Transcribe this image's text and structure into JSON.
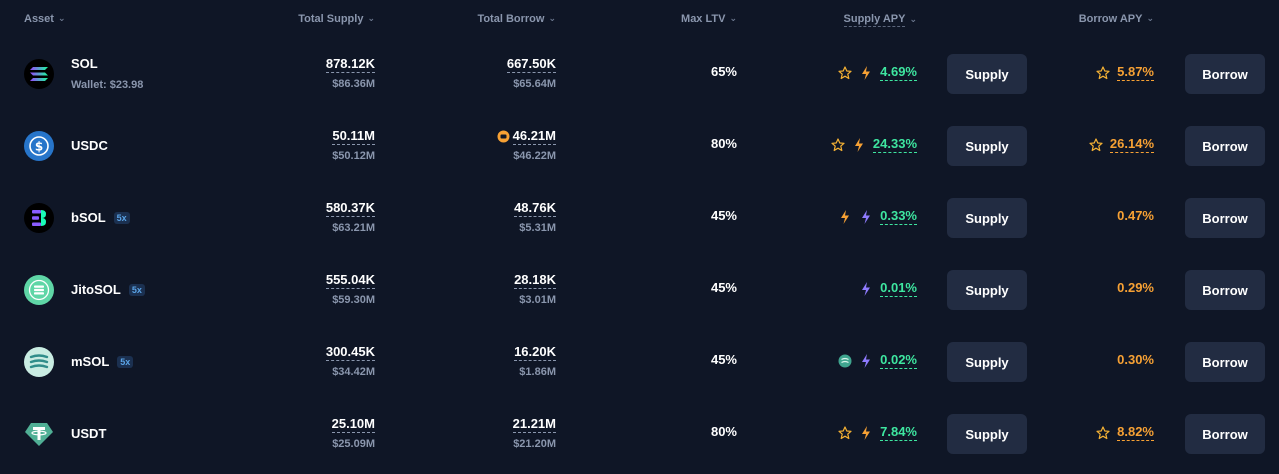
{
  "headers": {
    "asset": "Asset",
    "total_supply": "Total Supply",
    "total_borrow": "Total Borrow",
    "max_ltv": "Max LTV",
    "supply_apy": "Supply APY",
    "borrow_apy": "Borrow APY"
  },
  "rows": [
    {
      "asset": "SOL",
      "wallet": "Wallet: $23.98",
      "leverage": "",
      "supply": "878.12K",
      "supply_usd": "$86.36M",
      "borrow": "667.50K",
      "borrow_usd": "$65.64M",
      "ltv": "65%",
      "supply_apy": "4.69%",
      "borrow_apy": "5.87%",
      "supply_button": "Supply",
      "borrow_button": "Borrow"
    },
    {
      "asset": "USDC",
      "wallet": "",
      "leverage": "",
      "supply": "50.11M",
      "supply_usd": "$50.12M",
      "borrow": "46.21M",
      "borrow_usd": "$46.22M",
      "ltv": "80%",
      "supply_apy": "24.33%",
      "borrow_apy": "26.14%",
      "supply_button": "Supply",
      "borrow_button": "Borrow"
    },
    {
      "asset": "bSOL",
      "wallet": "",
      "leverage": "5x",
      "supply": "580.37K",
      "supply_usd": "$63.21M",
      "borrow": "48.76K",
      "borrow_usd": "$5.31M",
      "ltv": "45%",
      "supply_apy": "0.33%",
      "borrow_apy": "0.47%",
      "supply_button": "Supply",
      "borrow_button": "Borrow"
    },
    {
      "asset": "JitoSOL",
      "wallet": "",
      "leverage": "5x",
      "supply": "555.04K",
      "supply_usd": "$59.30M",
      "borrow": "28.18K",
      "borrow_usd": "$3.01M",
      "ltv": "45%",
      "supply_apy": "0.01%",
      "borrow_apy": "0.29%",
      "supply_button": "Supply",
      "borrow_button": "Borrow"
    },
    {
      "asset": "mSOL",
      "wallet": "",
      "leverage": "5x",
      "supply": "300.45K",
      "supply_usd": "$34.42M",
      "borrow": "16.20K",
      "borrow_usd": "$1.86M",
      "ltv": "45%",
      "supply_apy": "0.02%",
      "borrow_apy": "0.30%",
      "supply_button": "Supply",
      "borrow_button": "Borrow"
    },
    {
      "asset": "USDT",
      "wallet": "",
      "leverage": "",
      "supply": "25.10M",
      "supply_usd": "$25.09M",
      "borrow": "21.21M",
      "borrow_usd": "$21.20M",
      "ltv": "80%",
      "supply_apy": "7.84%",
      "borrow_apy": "8.82%",
      "supply_button": "Supply",
      "borrow_button": "Borrow"
    }
  ],
  "colors": {
    "background": "#0f1626",
    "button": "#222c42",
    "supply_apy": "#3ee6a0",
    "borrow_apy": "#f7a134",
    "muted": "#8a96ad"
  }
}
